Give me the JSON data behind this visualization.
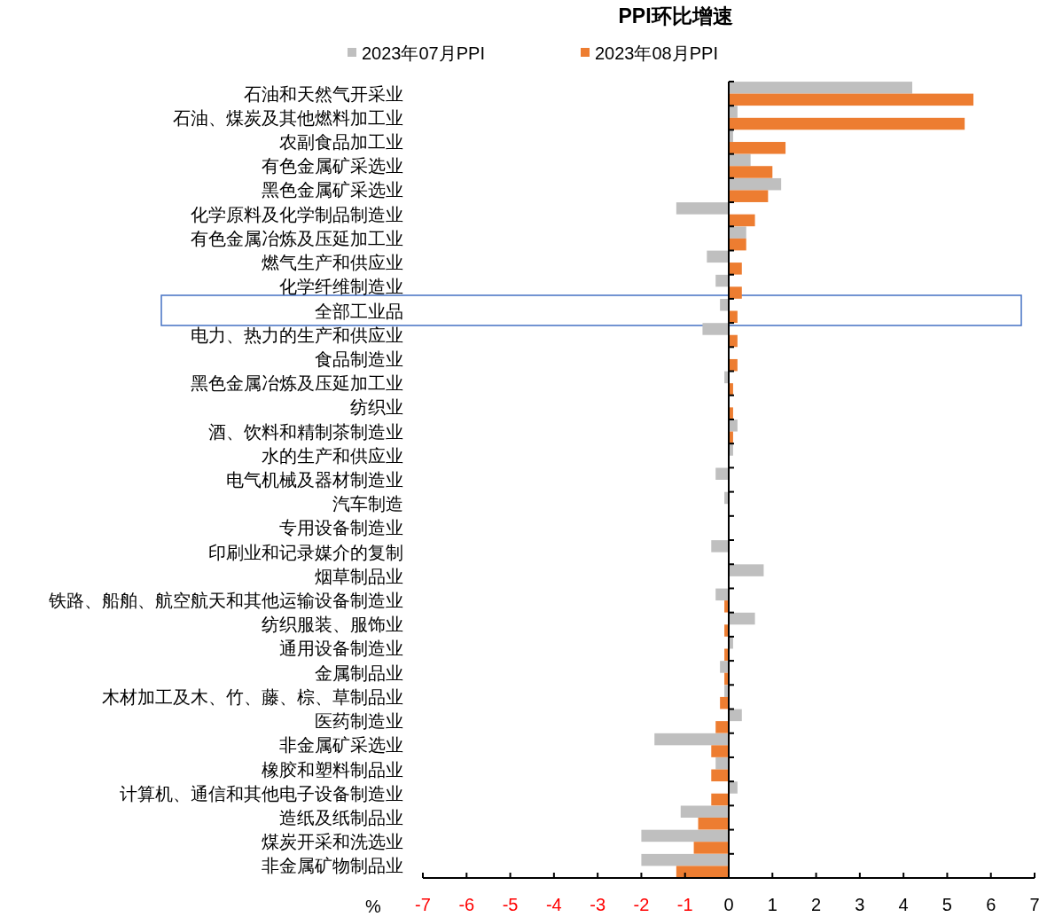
{
  "chart_data": {
    "type": "bar",
    "orientation": "horizontal",
    "title": "PPI环比增速",
    "xlabel": "%",
    "legend": "top",
    "categories": [
      "石油和天然气开采业",
      "石油、煤炭及其他燃料加工业",
      "农副食品加工业",
      "有色金属矿采选业",
      "黑色金属矿采选业",
      "化学原料及化学制品制造业",
      "有色金属冶炼及压延加工业",
      "燃气生产和供应业",
      "化学纤维制造业",
      "全部工业品",
      "电力、热力的生产和供应业",
      "食品制造业",
      "黑色金属冶炼及压延加工业",
      "纺织业",
      "酒、饮料和精制茶制造业",
      "水的生产和供应业",
      "电气机械及器材制造业",
      "汽车制造",
      "专用设备制造业",
      "印刷业和记录媒介的复制",
      "烟草制品业",
      "铁路、船舶、航空航天和其他运输设备制造业",
      "纺织服装、服饰业",
      "通用设备制造业",
      "金属制品业",
      "木材加工及木、竹、藤、棕、草制品业",
      "医药制造业",
      "非金属矿采选业",
      "橡胶和塑料制品业",
      "计算机、通信和其他电子设备制造业",
      "造纸及纸制品业",
      "煤炭开采和洗选业",
      "非金属矿物制品业"
    ],
    "series": [
      {
        "name": "2023年07月PPI",
        "color": "#bfbfbf",
        "values": [
          4.2,
          0.2,
          0.1,
          0.5,
          1.2,
          -1.2,
          0.4,
          -0.5,
          -0.3,
          -0.2,
          -0.6,
          0,
          -0.1,
          0,
          0.2,
          0.1,
          -0.3,
          -0.1,
          0,
          -0.4,
          0.8,
          -0.3,
          0.6,
          0.1,
          -0.2,
          -0.1,
          0.3,
          -1.7,
          -0.3,
          0.2,
          -1.1,
          -2.0,
          -2.0
        ]
      },
      {
        "name": "2023年08月PPI",
        "color": "#ed7d31",
        "values": [
          5.6,
          5.4,
          1.3,
          1.0,
          0.9,
          0.6,
          0.4,
          0.3,
          0.3,
          0.2,
          0.2,
          0.2,
          0.1,
          0.1,
          0.1,
          0,
          0,
          0,
          0,
          0,
          0,
          -0.1,
          -0.1,
          -0.1,
          -0.1,
          -0.2,
          -0.3,
          -0.4,
          -0.4,
          -0.4,
          -0.7,
          -0.8,
          -1.2
        ]
      }
    ],
    "xlim": [
      -7,
      7
    ],
    "xticks": [
      -7,
      -6,
      -5,
      -4,
      -3,
      -2,
      -1,
      0,
      1,
      2,
      3,
      4,
      5,
      6,
      7
    ]
  }
}
